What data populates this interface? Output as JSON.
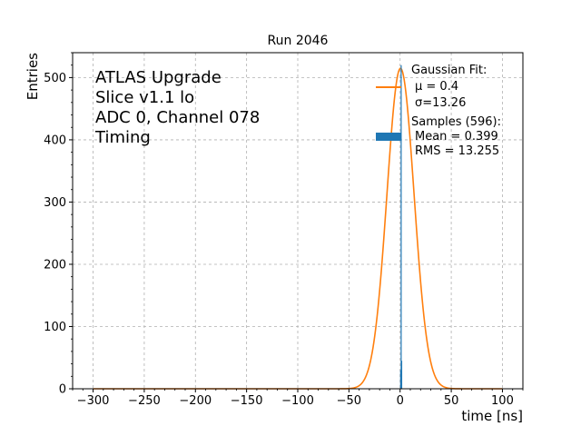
{
  "chart_data": {
    "type": "line",
    "title": "Run 2046",
    "xlabel": "time [ns]",
    "ylabel": "Entries",
    "xlim": [
      -320,
      120
    ],
    "ylim": [
      0,
      540
    ],
    "x_ticks": [
      -300,
      -250,
      -200,
      -150,
      -100,
      -50,
      0,
      50,
      100
    ],
    "y_ticks": [
      0,
      100,
      200,
      300,
      400,
      500
    ],
    "grid": true,
    "annotation_lines": [
      "ATLAS Upgrade",
      "Slice v1.1 lo",
      "ADC 0, Channel 078",
      "Timing"
    ],
    "legend": {
      "placement": "top-right",
      "fit_title": "Gaussian Fit:",
      "fit_mu": "μ = 0.4",
      "fit_sigma": "σ=13.26",
      "samples_title": "Samples (596):",
      "samples_mean": "Mean = 0.399",
      "samples_rms": "RMS = 13.255"
    },
    "series": [
      {
        "kind": "gaussian_curve",
        "color": "#ff7f0e",
        "amplitude": 515,
        "mu": 0.4,
        "sigma": 13.26,
        "x_range": [
          -300,
          100
        ]
      },
      {
        "kind": "histogram",
        "color": "#1f77b4",
        "bin_width": 0.5,
        "bins": [
          {
            "x": 0.0,
            "y": 30
          },
          {
            "x": 0.5,
            "y": 520
          },
          {
            "x": 1.0,
            "y": 45
          }
        ]
      }
    ]
  }
}
